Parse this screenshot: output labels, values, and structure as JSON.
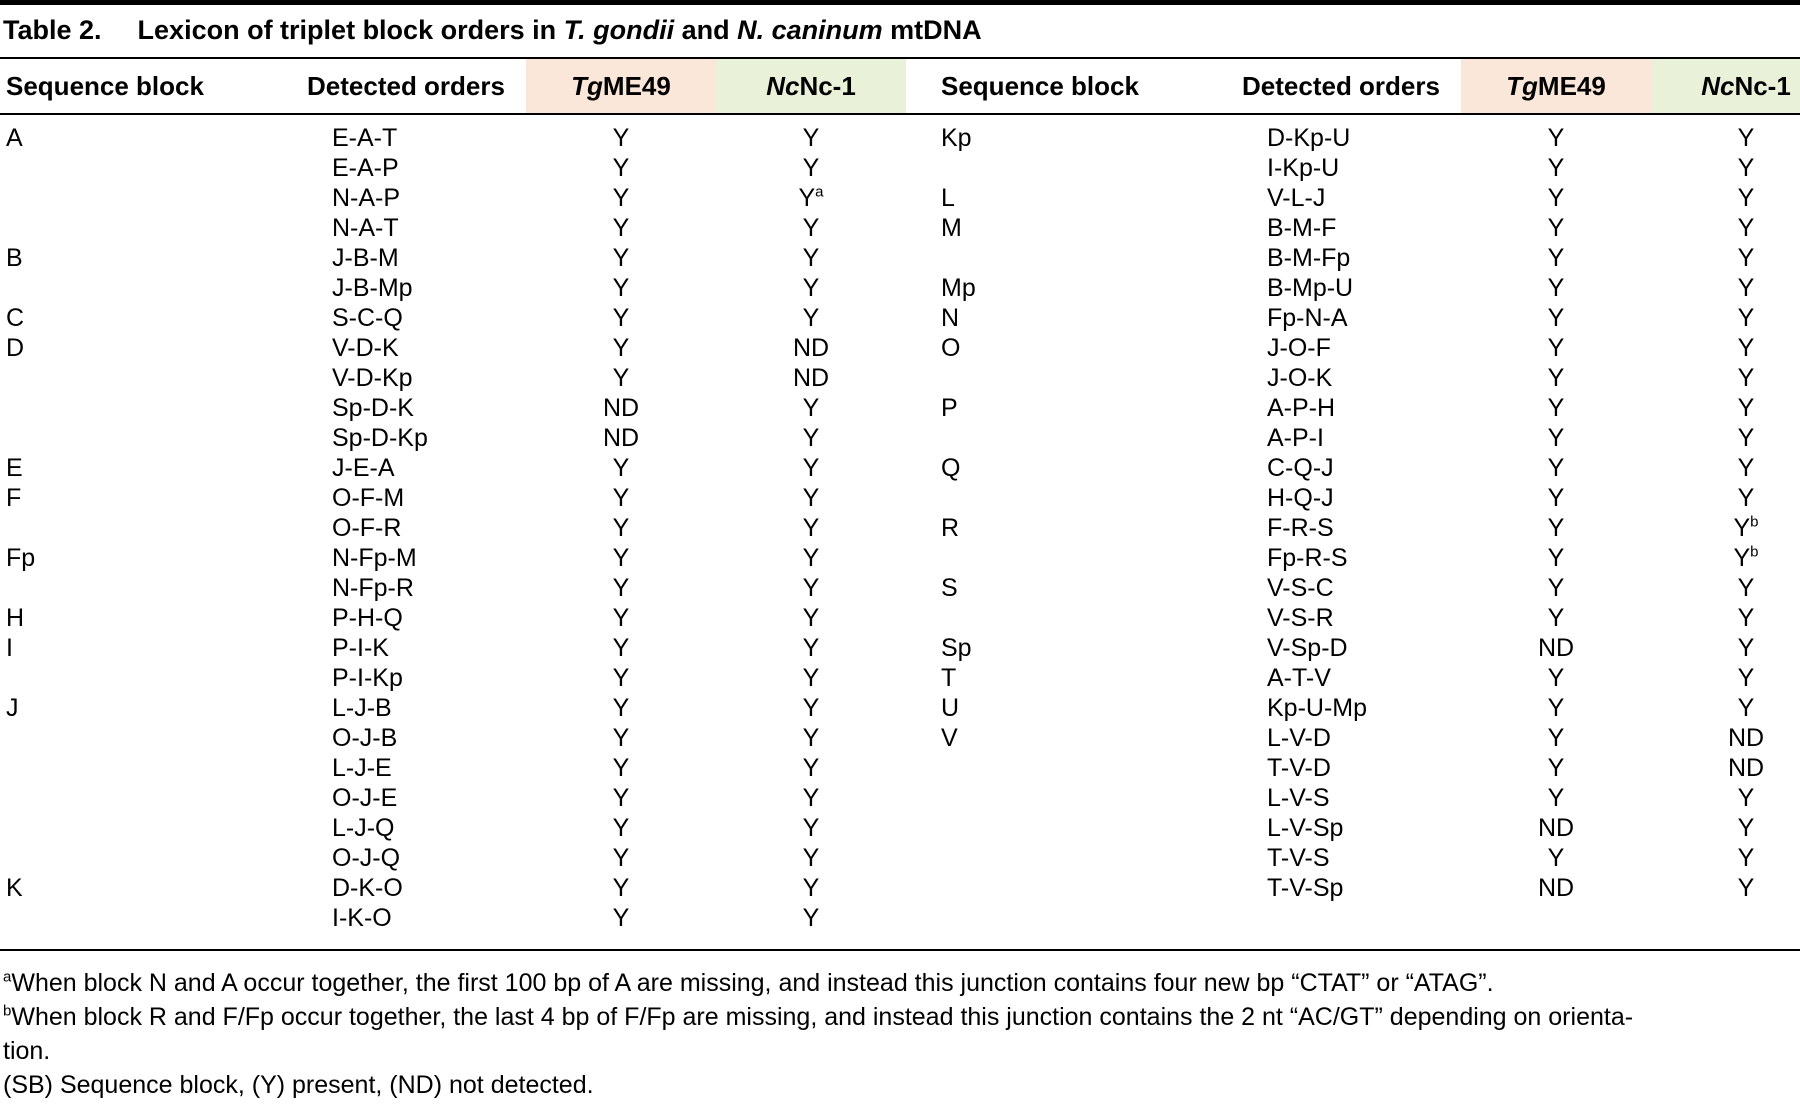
{
  "title": {
    "label": "Table 2.",
    "parts": [
      {
        "text": "Lexicon of triplet block orders in ",
        "italic": false
      },
      {
        "text": "T. gondii",
        "italic": true
      },
      {
        "text": " and ",
        "italic": false
      },
      {
        "text": "N. caninum",
        "italic": true
      },
      {
        "text": " mtDNA",
        "italic": false
      }
    ]
  },
  "header": {
    "seq_block": "Sequence block",
    "detected_orders": "Detected orders",
    "tg_italic": "Tg",
    "tg_rest": "ME49",
    "nc_italic": "Nc",
    "nc_rest": " Nc-1"
  },
  "colors": {
    "tg_header_bg": "#fbe7d9",
    "nc_header_bg": "#e9f2d8",
    "rule": "#000000"
  },
  "panels": [
    {
      "rows": [
        {
          "seq": "A",
          "order": "E-A-T",
          "tg": "Y",
          "nc": "Y"
        },
        {
          "seq": "",
          "order": "E-A-P",
          "tg": "Y",
          "nc": "Y"
        },
        {
          "seq": "",
          "order": "N-A-P",
          "tg": "Y",
          "nc": "Y",
          "nc_sup": "a"
        },
        {
          "seq": "",
          "order": "N-A-T",
          "tg": "Y",
          "nc": "Y"
        },
        {
          "seq": "B",
          "order": "J-B-M",
          "tg": "Y",
          "nc": "Y"
        },
        {
          "seq": "",
          "order": "J-B-Mp",
          "tg": "Y",
          "nc": "Y"
        },
        {
          "seq": "C",
          "order": "S-C-Q",
          "tg": "Y",
          "nc": "Y"
        },
        {
          "seq": "D",
          "order": "V-D-K",
          "tg": "Y",
          "nc": "ND"
        },
        {
          "seq": "",
          "order": "V-D-Kp",
          "tg": "Y",
          "nc": "ND"
        },
        {
          "seq": "",
          "order": "Sp-D-K",
          "tg": "ND",
          "nc": "Y"
        },
        {
          "seq": "",
          "order": "Sp-D-Kp",
          "tg": "ND",
          "nc": "Y"
        },
        {
          "seq": "E",
          "order": "J-E-A",
          "tg": "Y",
          "nc": "Y"
        },
        {
          "seq": "F",
          "order": "O-F-M",
          "tg": "Y",
          "nc": "Y"
        },
        {
          "seq": "",
          "order": "O-F-R",
          "tg": "Y",
          "nc": "Y"
        },
        {
          "seq": "Fp",
          "order": "N-Fp-M",
          "tg": "Y",
          "nc": "Y"
        },
        {
          "seq": "",
          "order": "N-Fp-R",
          "tg": "Y",
          "nc": "Y"
        },
        {
          "seq": "H",
          "order": "P-H-Q",
          "tg": "Y",
          "nc": "Y"
        },
        {
          "seq": "I",
          "order": "P-I-K",
          "tg": "Y",
          "nc": "Y"
        },
        {
          "seq": "",
          "order": "P-I-Kp",
          "tg": "Y",
          "nc": "Y"
        },
        {
          "seq": "J",
          "order": "L-J-B",
          "tg": "Y",
          "nc": "Y"
        },
        {
          "seq": "",
          "order": "O-J-B",
          "tg": "Y",
          "nc": "Y"
        },
        {
          "seq": "",
          "order": "L-J-E",
          "tg": "Y",
          "nc": "Y"
        },
        {
          "seq": "",
          "order": "O-J-E",
          "tg": "Y",
          "nc": "Y"
        },
        {
          "seq": "",
          "order": "L-J-Q",
          "tg": "Y",
          "nc": "Y"
        },
        {
          "seq": "",
          "order": "O-J-Q",
          "tg": "Y",
          "nc": "Y"
        },
        {
          "seq": "K",
          "order": "D-K-O",
          "tg": "Y",
          "nc": "Y"
        },
        {
          "seq": "",
          "order": "I-K-O",
          "tg": "Y",
          "nc": "Y"
        }
      ]
    },
    {
      "rows": [
        {
          "seq": "Kp",
          "order": "D-Kp-U",
          "tg": "Y",
          "nc": "Y"
        },
        {
          "seq": "",
          "order": "I-Kp-U",
          "tg": "Y",
          "nc": "Y"
        },
        {
          "seq": "L",
          "order": "V-L-J",
          "tg": "Y",
          "nc": "Y"
        },
        {
          "seq": "M",
          "order": "B-M-F",
          "tg": "Y",
          "nc": "Y"
        },
        {
          "seq": "",
          "order": "B-M-Fp",
          "tg": "Y",
          "nc": "Y"
        },
        {
          "seq": "Mp",
          "order": "B-Mp-U",
          "tg": "Y",
          "nc": "Y"
        },
        {
          "seq": "N",
          "order": "Fp-N-A",
          "tg": "Y",
          "nc": "Y"
        },
        {
          "seq": "O",
          "order": "J-O-F",
          "tg": "Y",
          "nc": "Y"
        },
        {
          "seq": "",
          "order": "J-O-K",
          "tg": "Y",
          "nc": "Y"
        },
        {
          "seq": "P",
          "order": "A-P-H",
          "tg": "Y",
          "nc": "Y"
        },
        {
          "seq": "",
          "order": "A-P-I",
          "tg": "Y",
          "nc": "Y"
        },
        {
          "seq": "Q",
          "order": "C-Q-J",
          "tg": "Y",
          "nc": "Y"
        },
        {
          "seq": "",
          "order": "H-Q-J",
          "tg": "Y",
          "nc": "Y"
        },
        {
          "seq": "R",
          "order": "F-R-S",
          "tg": "Y",
          "nc": "Y",
          "nc_sup": "b"
        },
        {
          "seq": "",
          "order": "Fp-R-S",
          "tg": "Y",
          "nc": "Y",
          "nc_sup": "b"
        },
        {
          "seq": "S",
          "order": "V-S-C",
          "tg": "Y",
          "nc": "Y"
        },
        {
          "seq": "",
          "order": "V-S-R",
          "tg": "Y",
          "nc": "Y"
        },
        {
          "seq": "Sp",
          "order": "V-Sp-D",
          "tg": "ND",
          "nc": "Y"
        },
        {
          "seq": "T",
          "order": "A-T-V",
          "tg": "Y",
          "nc": "Y"
        },
        {
          "seq": "U",
          "order": "Kp-U-Mp",
          "tg": "Y",
          "nc": "Y"
        },
        {
          "seq": "V",
          "order": "L-V-D",
          "tg": "Y",
          "nc": "ND"
        },
        {
          "seq": "",
          "order": "T-V-D",
          "tg": "Y",
          "nc": "ND"
        },
        {
          "seq": "",
          "order": "L-V-S",
          "tg": "Y",
          "nc": "Y"
        },
        {
          "seq": "",
          "order": "L-V-Sp",
          "tg": "ND",
          "nc": "Y"
        },
        {
          "seq": "",
          "order": "T-V-S",
          "tg": "Y",
          "nc": "Y"
        },
        {
          "seq": "",
          "order": "T-V-Sp",
          "tg": "ND",
          "nc": "Y"
        }
      ]
    }
  ],
  "footnotes": [
    {
      "sup": "a",
      "lines": [
        "When block N and A occur together, the first 100 bp of A are missing, and instead this junction contains four new bp “CTAT” or “ATAG”."
      ]
    },
    {
      "sup": "b",
      "lines": [
        "When block R and F/Fp occur together, the last 4 bp of F/Fp are missing, and instead this junction contains the 2 nt “AC/GT” depending on orienta-",
        "tion."
      ]
    },
    {
      "sup": "",
      "lines": [
        "(SB) Sequence block, (Y) present, (ND) not detected."
      ]
    }
  ]
}
